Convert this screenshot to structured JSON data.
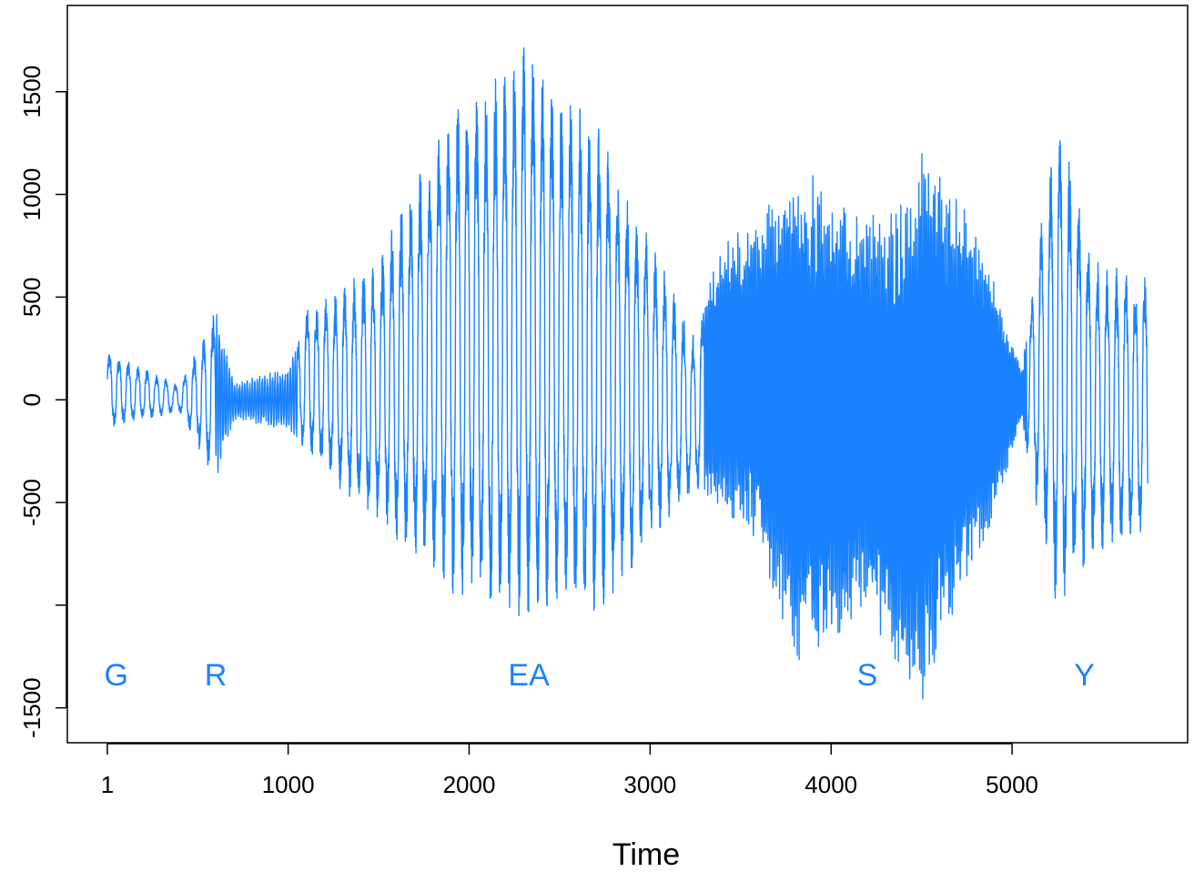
{
  "chart_data": {
    "type": "line",
    "title": "",
    "xlabel": "Time",
    "ylabel": "",
    "xlim": [
      -220,
      5970
    ],
    "ylim": [
      -1670,
      1920
    ],
    "x_ticks": [
      {
        "value": 1,
        "label": "1"
      },
      {
        "value": 1000,
        "label": "1000"
      },
      {
        "value": 2000,
        "label": "2000"
      },
      {
        "value": 3000,
        "label": "3000"
      },
      {
        "value": 4000,
        "label": "4000"
      },
      {
        "value": 5000,
        "label": "5000"
      }
    ],
    "y_ticks": [
      {
        "value": -1500,
        "label": "-1500"
      },
      {
        "value": -1000,
        "label": ""
      },
      {
        "value": -500,
        "label": "-500"
      },
      {
        "value": 0,
        "label": "0"
      },
      {
        "value": 500,
        "label": "500"
      },
      {
        "value": 1000,
        "label": "1000"
      },
      {
        "value": 1500,
        "label": "1500"
      }
    ],
    "line_color": "#1a82ff",
    "n_points": 5745,
    "series": [
      {
        "envelope": [
          {
            "x": 1,
            "min": -140,
            "max": 240
          },
          {
            "x": 400,
            "min": -60,
            "max": 70
          },
          {
            "x": 600,
            "min": -400,
            "max": 440
          },
          {
            "x": 700,
            "min": -100,
            "max": 90
          },
          {
            "x": 1000,
            "min": -150,
            "max": 150
          },
          {
            "x": 1100,
            "min": -250,
            "max": 450
          },
          {
            "x": 1300,
            "min": -450,
            "max": 540
          },
          {
            "x": 1500,
            "min": -600,
            "max": 700
          },
          {
            "x": 1700,
            "min": -800,
            "max": 1100
          },
          {
            "x": 1900,
            "min": -950,
            "max": 1500
          },
          {
            "x": 2100,
            "min": -1020,
            "max": 1540
          },
          {
            "x": 2300,
            "min": -1080,
            "max": 1770
          },
          {
            "x": 2500,
            "min": -1000,
            "max": 1500
          },
          {
            "x": 2700,
            "min": -1060,
            "max": 1390
          },
          {
            "x": 2900,
            "min": -840,
            "max": 980
          },
          {
            "x": 3100,
            "min": -600,
            "max": 600
          },
          {
            "x": 3250,
            "min": -450,
            "max": 300
          },
          {
            "x": 3350,
            "min": -500,
            "max": 720
          },
          {
            "x": 3600,
            "min": -700,
            "max": 900
          },
          {
            "x": 3800,
            "min": -1370,
            "max": 1180
          },
          {
            "x": 4000,
            "min": -1200,
            "max": 1020
          },
          {
            "x": 4200,
            "min": -1000,
            "max": 920
          },
          {
            "x": 4400,
            "min": -1400,
            "max": 1000
          },
          {
            "x": 4500,
            "min": -1490,
            "max": 1250
          },
          {
            "x": 4700,
            "min": -1000,
            "max": 1000
          },
          {
            "x": 4900,
            "min": -600,
            "max": 600
          },
          {
            "x": 5050,
            "min": -100,
            "max": 150
          },
          {
            "x": 5150,
            "min": -600,
            "max": 800
          },
          {
            "x": 5250,
            "min": -1060,
            "max": 1420
          },
          {
            "x": 5450,
            "min": -750,
            "max": 700
          },
          {
            "x": 5750,
            "min": -660,
            "max": 600
          }
        ]
      }
    ],
    "annotations": [
      {
        "text": "G",
        "x": 50,
        "y": -1390
      },
      {
        "text": "R",
        "x": 600,
        "y": -1390
      },
      {
        "text": "EA",
        "x": 2330,
        "y": -1390
      },
      {
        "text": "S",
        "x": 4200,
        "y": -1390
      },
      {
        "text": "Y",
        "x": 5400,
        "y": -1390
      }
    ]
  }
}
